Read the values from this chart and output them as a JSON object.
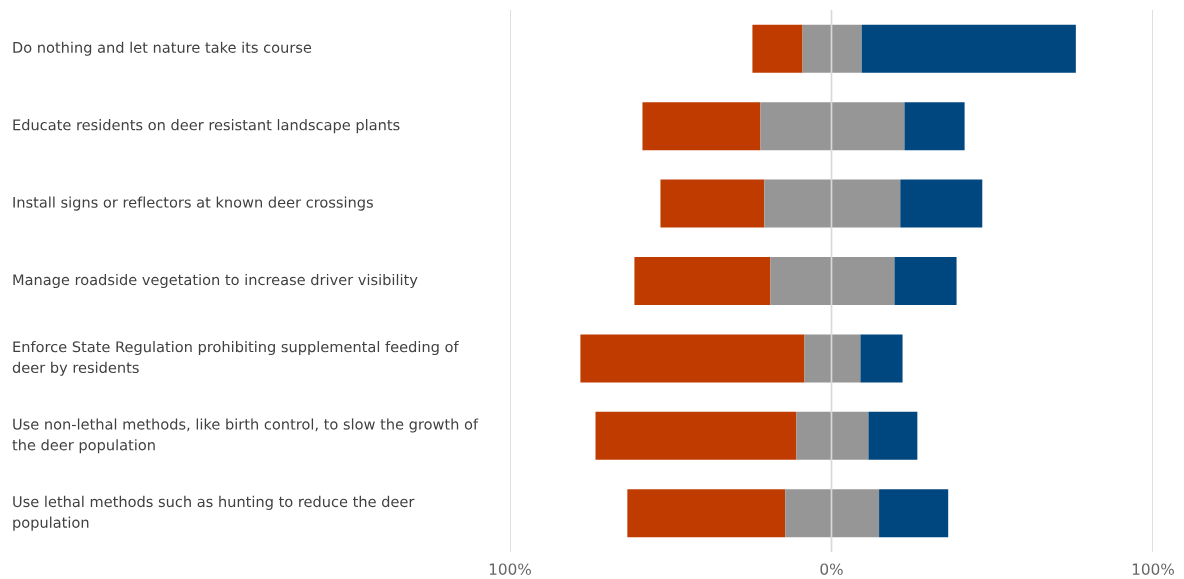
{
  "chart_data": {
    "type": "bar",
    "orientation": "horizontal",
    "categories": [
      "Do nothing and let nature take its course",
      "Educate residents on deer resistant landscape plants",
      "Install signs or reflectors at known deer crossings",
      "Manage roadside vegetation to increase driver visibility",
      "Enforce State Regulation prohibiting supplemental feeding of deer by residents",
      "Use non-lethal methods, like birth control, to slow the growth of the deer population",
      "Use lethal methods such as hunting to reduce the deer population"
    ],
    "series": [
      {
        "color": "#bf3b00",
        "base": [
          -24.6,
          -58.8,
          -53.2,
          -61.3,
          -78.1,
          -73.4,
          -63.5
        ],
        "values": [
          15.6,
          36.7,
          32.3,
          42.3,
          69.7,
          62.5,
          49.1
        ]
      },
      {
        "color": "#969696",
        "base": [
          -9.0,
          -22.1,
          -20.9,
          -19.0,
          -8.4,
          -10.9,
          -14.4
        ],
        "values": [
          18.4,
          44.8,
          42.3,
          38.6,
          17.4,
          22.4,
          29.2
        ]
      },
      {
        "color": "#00467f",
        "base": [
          9.4,
          22.7,
          21.4,
          19.6,
          9.0,
          11.5,
          14.8
        ],
        "values": [
          66.6,
          18.7,
          25.5,
          19.3,
          13.1,
          15.2,
          21.5
        ]
      }
    ],
    "xlim": [
      -100,
      100
    ],
    "xticks": [
      {
        "value": -100,
        "label": "100%"
      },
      {
        "value": 0,
        "label": "0%"
      },
      {
        "value": 100,
        "label": "100%"
      }
    ],
    "grid": "x"
  }
}
